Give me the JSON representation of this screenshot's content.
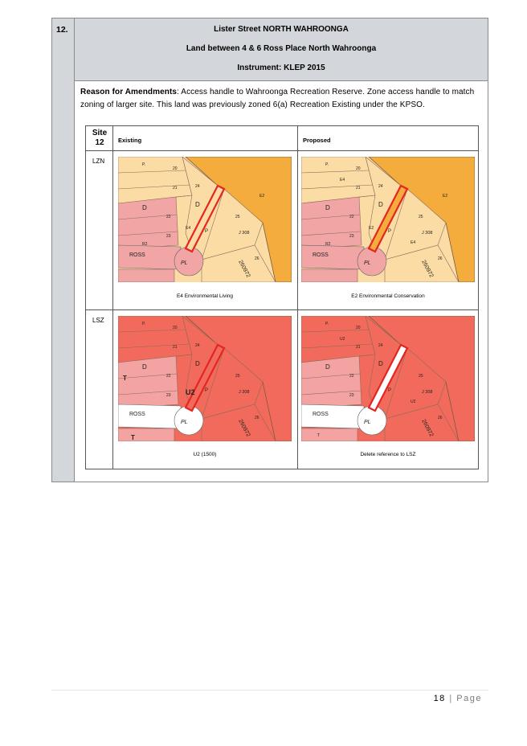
{
  "item_number": "12.",
  "header": {
    "line1": "Lister Street NORTH WAHROONGA",
    "line2": "Land between 4 & 6 Ross Place North Wahroonga",
    "line3": "Instrument: KLEP 2015"
  },
  "reason": {
    "label": "Reason for Amendments",
    "text": ": Access handle to Wahroonga Recreation Reserve. Zone access handle to match zoning of larger site. This land was previously zoned 6(a) Recreation Existing under the KPSO."
  },
  "table": {
    "site_line1": "Site",
    "site_line2": "12",
    "col_existing": "Existing",
    "col_proposed": "Proposed",
    "rows": [
      {
        "label": "LZN",
        "existing_caption": "E4 Environmental Living",
        "proposed_caption": "E2 Environmental Conservation"
      },
      {
        "label": "LSZ",
        "existing_caption": "U2 (1500)",
        "proposed_caption": "Delete reference to LSZ"
      }
    ]
  },
  "map_labels": {
    "ross": "ROSS",
    "pl": "PL",
    "d": "D",
    "p": "P",
    "j308": "J 308",
    "dp": "260972",
    "e2": "E2",
    "e4": "E4",
    "r2": "R2",
    "u2": "U2",
    "t": "T",
    "lots": [
      "20",
      "21",
      "22",
      "23",
      "24",
      "25",
      "26"
    ]
  },
  "colors": {
    "e4": "#fbdca5",
    "e2": "#f4ad3d",
    "r2": "#f1a5a5",
    "lsz_dark": "#f26a5b",
    "lsz_light": "#f4a3a3",
    "highlight": "#e52521"
  },
  "footer": {
    "page_number": "18",
    "separator": "|",
    "page_word": "Page"
  }
}
